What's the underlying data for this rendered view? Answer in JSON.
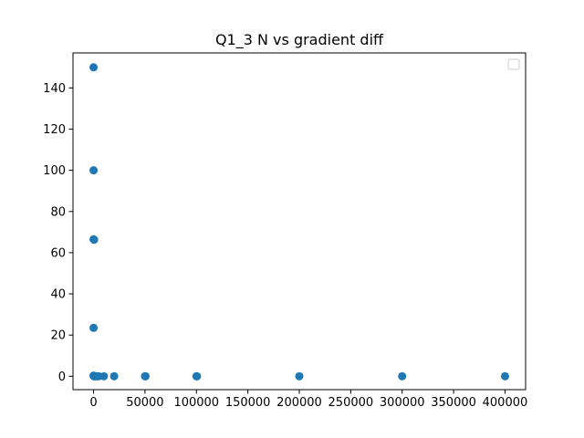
{
  "chart_data": {
    "type": "scatter",
    "title": "Q1_3 N vs gradient diff",
    "xlabel": "",
    "ylabel": "",
    "xlim": [
      -20000,
      420000
    ],
    "ylim": [
      -6.5,
      157
    ],
    "x_ticks": [
      0,
      50000,
      100000,
      150000,
      200000,
      250000,
      300000,
      350000,
      400000
    ],
    "y_ticks": [
      0,
      20,
      40,
      60,
      80,
      100,
      120,
      140
    ],
    "grid": false,
    "legend": {
      "placement": "top-right",
      "entries": []
    },
    "series_color": "#1f77b4",
    "points": [
      {
        "x": 0,
        "y": 150
      },
      {
        "x": 0,
        "y": 100
      },
      {
        "x": 0,
        "y": 66.5
      },
      {
        "x": 500,
        "y": 66.3
      },
      {
        "x": 0,
        "y": 23.5
      },
      {
        "x": 0,
        "y": 0.3
      },
      {
        "x": 100,
        "y": 0.2
      },
      {
        "x": 200,
        "y": 0.1
      },
      {
        "x": 500,
        "y": 0
      },
      {
        "x": 1000,
        "y": 0
      },
      {
        "x": 2000,
        "y": 0
      },
      {
        "x": 3000,
        "y": 0
      },
      {
        "x": 5000,
        "y": 0
      },
      {
        "x": 10000,
        "y": 0
      },
      {
        "x": 20000,
        "y": 0
      },
      {
        "x": 50000,
        "y": 0
      },
      {
        "x": 50500,
        "y": 0
      },
      {
        "x": 100000,
        "y": 0
      },
      {
        "x": 100500,
        "y": 0
      },
      {
        "x": 200000,
        "y": 0
      },
      {
        "x": 300000,
        "y": 0
      },
      {
        "x": 400000,
        "y": 0
      }
    ]
  }
}
